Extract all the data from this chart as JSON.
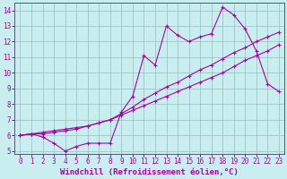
{
  "xlabel": "Windchill (Refroidissement éolien,°C)",
  "ylabel": "",
  "xlim": [
    -0.5,
    23.5
  ],
  "ylim": [
    4.8,
    14.5
  ],
  "xticks": [
    0,
    1,
    2,
    3,
    4,
    5,
    6,
    7,
    8,
    9,
    10,
    11,
    12,
    13,
    14,
    15,
    16,
    17,
    18,
    19,
    20,
    21,
    22,
    23
  ],
  "yticks": [
    5,
    6,
    7,
    8,
    9,
    10,
    11,
    12,
    13,
    14
  ],
  "background_color": "#c8eef0",
  "line_color": "#aa00aa",
  "grid_color": "#99bbbb",
  "line1_x": [
    0,
    1,
    2,
    3,
    4,
    5,
    6,
    7,
    8,
    9,
    10,
    11,
    12,
    13,
    14,
    15,
    16,
    17,
    18,
    19,
    20,
    21,
    22,
    23
  ],
  "line1_y": [
    6.0,
    6.1,
    5.9,
    5.5,
    5.0,
    5.3,
    5.5,
    5.5,
    5.5,
    7.5,
    8.5,
    11.1,
    10.5,
    13.0,
    12.4,
    12.0,
    12.3,
    12.5,
    14.2,
    13.7,
    12.8,
    11.4,
    9.3,
    8.8
  ],
  "line2_x": [
    0,
    1,
    2,
    3,
    4,
    5,
    6,
    7,
    8,
    9,
    10,
    11,
    12,
    13,
    14,
    15,
    16,
    17,
    18,
    19,
    20,
    21,
    22,
    23
  ],
  "line2_y": [
    6.0,
    6.1,
    6.1,
    6.2,
    6.3,
    6.4,
    6.6,
    6.8,
    7.0,
    7.4,
    7.8,
    8.3,
    8.7,
    9.1,
    9.4,
    9.8,
    10.2,
    10.5,
    10.9,
    11.3,
    11.6,
    12.0,
    12.3,
    12.6
  ],
  "line3_x": [
    0,
    1,
    2,
    3,
    4,
    5,
    6,
    7,
    8,
    9,
    10,
    11,
    12,
    13,
    14,
    15,
    16,
    17,
    18,
    19,
    20,
    21,
    22,
    23
  ],
  "line3_y": [
    6.0,
    6.1,
    6.2,
    6.3,
    6.4,
    6.5,
    6.6,
    6.8,
    7.0,
    7.3,
    7.6,
    7.9,
    8.2,
    8.5,
    8.8,
    9.1,
    9.4,
    9.7,
    10.0,
    10.4,
    10.8,
    11.1,
    11.4,
    11.8
  ],
  "marker": "+",
  "markersize": 3,
  "linewidth": 0.8,
  "tick_fontsize": 5.5,
  "xlabel_fontsize": 6.5
}
